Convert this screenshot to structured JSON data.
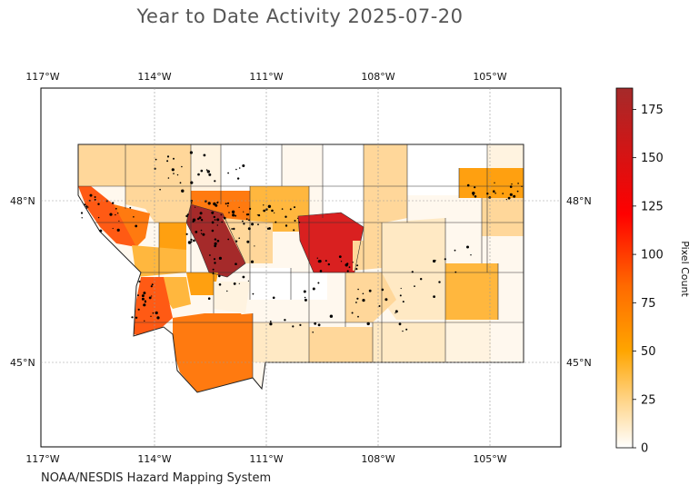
{
  "title": "Year to Date Activity 2025-07-20",
  "footer": "NOAA/NESDIS Hazard Mapping System",
  "map": {
    "lon_ticks": [
      "117°W",
      "114°W",
      "111°W",
      "108°W",
      "105°W"
    ],
    "lat_ticks": [
      "48°N",
      "45°N"
    ],
    "grid": true
  },
  "colorbar": {
    "label": "Pixel Count",
    "ticks": [
      "0",
      "25",
      "50",
      "75",
      "100",
      "125",
      "150",
      "175"
    ],
    "range": [
      0,
      186
    ],
    "stops": [
      "#ffffff",
      "#ffd58a",
      "#ffa500",
      "#ff4500",
      "#ff0000",
      "#a52a2a"
    ]
  },
  "colors": {
    "very_low": "#fff8ee",
    "low": "#ffe9c4",
    "low_mid": "#ffd79a",
    "mid": "#ffb73e",
    "mid_high": "#ffa010",
    "high": "#ff7a10",
    "higher": "#ff5a14",
    "very_high": "#d92020",
    "max": "#a52a2a"
  }
}
